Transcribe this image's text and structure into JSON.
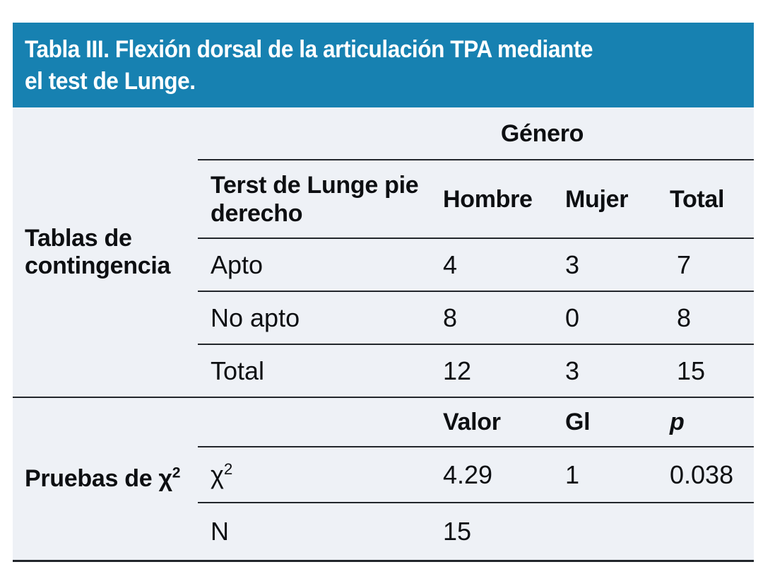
{
  "colors": {
    "header_bg": "#1781b1",
    "header_text": "#ffffff",
    "body_bg": "#eef1f6",
    "text": "#0d0f12",
    "rule": "#22262b"
  },
  "header": {
    "title_lines": [
      "Tabla III. Flexión dorsal de la articulación TPA mediante",
      "el test de Lunge."
    ]
  },
  "contingency": {
    "section_label": "Tablas de contingencia",
    "gender_spanner": "Género",
    "row_header": "Terst de Lunge pie derecho",
    "col_headers": {
      "hombre": "Hombre",
      "mujer": "Mujer",
      "total": "Total"
    },
    "rows": [
      {
        "label": "Apto",
        "hombre": "4",
        "mujer": "3",
        "total": "7"
      },
      {
        "label": "No apto",
        "hombre": "8",
        "mujer": "0",
        "total": "8"
      },
      {
        "label": "Total",
        "hombre": "12",
        "mujer": "3",
        "total": "15"
      }
    ]
  },
  "chi": {
    "section_label_prefix": "Pruebas de χ",
    "section_label_sup": "2",
    "col_headers": {
      "valor": "Valor",
      "gl": "Gl",
      "p": "p"
    },
    "chi_row": {
      "label_prefix": "χ",
      "label_sup": "2",
      "valor": "4.29",
      "gl": "1",
      "p": "0.038"
    },
    "n_row": {
      "label": "N",
      "valor": "15"
    }
  },
  "chart_data": {
    "type": "table",
    "title": "Tabla III. Flexión dorsal de la articulación TPA mediante el test de Lunge.",
    "sections": [
      {
        "name": "Tablas de contingencia",
        "spanner": "Género",
        "columns": [
          "Terst de Lunge pie derecho",
          "Hombre",
          "Mujer",
          "Total"
        ],
        "rows": [
          [
            "Apto",
            4,
            3,
            7
          ],
          [
            "No apto",
            8,
            0,
            8
          ],
          [
            "Total",
            12,
            3,
            15
          ]
        ]
      },
      {
        "name": "Pruebas de χ2",
        "columns": [
          "",
          "Valor",
          "Gl",
          "p"
        ],
        "rows": [
          [
            "χ2",
            4.29,
            1,
            0.038
          ],
          [
            "N",
            15,
            null,
            null
          ]
        ]
      }
    ]
  }
}
